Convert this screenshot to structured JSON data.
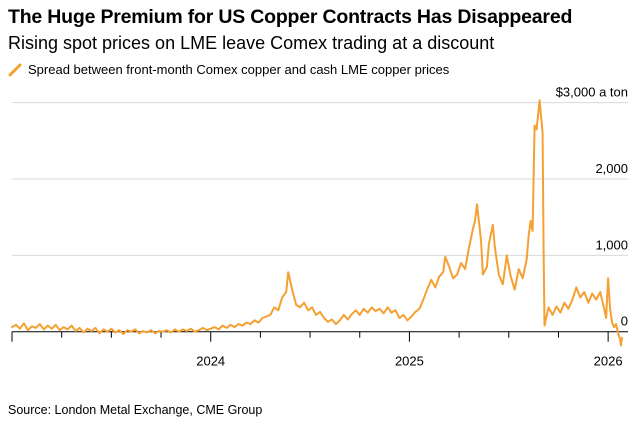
{
  "header": {
    "title": "The Huge Premium for US Copper Contracts Has Disappeared",
    "subtitle": "Rising spot prices on LME leave Comex trading at a discount"
  },
  "footer": {
    "source": "Source: London Metal Exchange, CME Group"
  },
  "colors": {
    "series": "#f5a033",
    "grid": "#d9d9d9",
    "axis": "#000000",
    "text": "#000000"
  },
  "chart_data": {
    "type": "line",
    "title": "The Huge Premium for US Copper Contracts Has Disappeared",
    "subtitle": "Rising spot prices on LME leave Comex trading at a discount",
    "xlabel": "",
    "ylabel": "$ a ton",
    "ylim": [
      -200,
      3100
    ],
    "xlim": [
      2023.0,
      2026.1
    ],
    "grid": true,
    "legend_position": "top-left",
    "y_ticks": [
      {
        "value": 3000,
        "label": "$3,000 a ton"
      },
      {
        "value": 2000,
        "label": "2,000"
      },
      {
        "value": 1000,
        "label": "1,000"
      },
      {
        "value": 0,
        "label": "0"
      }
    ],
    "x_ticks": [
      {
        "value": 2024,
        "label": "2024"
      },
      {
        "value": 2025,
        "label": "2025"
      },
      {
        "value": 2026,
        "label": "2026"
      }
    ],
    "series": [
      {
        "name": "Spread between front-month Comex copper and cash LME copper prices",
        "points": [
          [
            2023.0,
            60
          ],
          [
            2023.02,
            90
          ],
          [
            2023.04,
            40
          ],
          [
            2023.06,
            110
          ],
          [
            2023.08,
            20
          ],
          [
            2023.1,
            70
          ],
          [
            2023.12,
            50
          ],
          [
            2023.14,
            100
          ],
          [
            2023.16,
            30
          ],
          [
            2023.18,
            80
          ],
          [
            2023.2,
            40
          ],
          [
            2023.22,
            90
          ],
          [
            2023.24,
            20
          ],
          [
            2023.26,
            60
          ],
          [
            2023.28,
            30
          ],
          [
            2023.3,
            80
          ],
          [
            2023.32,
            10
          ],
          [
            2023.34,
            50
          ],
          [
            2023.36,
            -10
          ],
          [
            2023.38,
            40
          ],
          [
            2023.4,
            10
          ],
          [
            2023.42,
            50
          ],
          [
            2023.44,
            -20
          ],
          [
            2023.46,
            30
          ],
          [
            2023.48,
            0
          ],
          [
            2023.5,
            40
          ],
          [
            2023.52,
            -10
          ],
          [
            2023.54,
            20
          ],
          [
            2023.56,
            -30
          ],
          [
            2023.58,
            20
          ],
          [
            2023.6,
            0
          ],
          [
            2023.62,
            30
          ],
          [
            2023.64,
            -20
          ],
          [
            2023.66,
            10
          ],
          [
            2023.68,
            -10
          ],
          [
            2023.7,
            20
          ],
          [
            2023.72,
            -20
          ],
          [
            2023.74,
            10
          ],
          [
            2023.76,
            0
          ],
          [
            2023.78,
            20
          ],
          [
            2023.8,
            -10
          ],
          [
            2023.82,
            30
          ],
          [
            2023.84,
            0
          ],
          [
            2023.86,
            30
          ],
          [
            2023.88,
            10
          ],
          [
            2023.9,
            40
          ],
          [
            2023.92,
            0
          ],
          [
            2023.94,
            20
          ],
          [
            2023.96,
            50
          ],
          [
            2023.98,
            20
          ],
          [
            2024.0,
            40
          ],
          [
            2024.02,
            60
          ],
          [
            2024.04,
            30
          ],
          [
            2024.06,
            80
          ],
          [
            2024.08,
            50
          ],
          [
            2024.1,
            90
          ],
          [
            2024.12,
            60
          ],
          [
            2024.14,
            100
          ],
          [
            2024.16,
            80
          ],
          [
            2024.18,
            120
          ],
          [
            2024.2,
            100
          ],
          [
            2024.22,
            150
          ],
          [
            2024.24,
            120
          ],
          [
            2024.26,
            180
          ],
          [
            2024.28,
            200
          ],
          [
            2024.3,
            220
          ],
          [
            2024.32,
            320
          ],
          [
            2024.34,
            280
          ],
          [
            2024.36,
            450
          ],
          [
            2024.38,
            520
          ],
          [
            2024.39,
            780
          ],
          [
            2024.41,
            550
          ],
          [
            2024.43,
            350
          ],
          [
            2024.45,
            320
          ],
          [
            2024.47,
            380
          ],
          [
            2024.49,
            280
          ],
          [
            2024.51,
            320
          ],
          [
            2024.53,
            220
          ],
          [
            2024.55,
            260
          ],
          [
            2024.57,
            180
          ],
          [
            2024.59,
            130
          ],
          [
            2024.61,
            160
          ],
          [
            2024.63,
            100
          ],
          [
            2024.65,
            150
          ],
          [
            2024.67,
            220
          ],
          [
            2024.69,
            160
          ],
          [
            2024.71,
            230
          ],
          [
            2024.73,
            280
          ],
          [
            2024.75,
            220
          ],
          [
            2024.77,
            300
          ],
          [
            2024.79,
            250
          ],
          [
            2024.81,
            320
          ],
          [
            2024.83,
            270
          ],
          [
            2024.85,
            300
          ],
          [
            2024.87,
            240
          ],
          [
            2024.89,
            320
          ],
          [
            2024.91,
            250
          ],
          [
            2024.93,
            280
          ],
          [
            2024.95,
            180
          ],
          [
            2024.97,
            220
          ],
          [
            2024.99,
            150
          ],
          [
            2025.01,
            200
          ],
          [
            2025.03,
            260
          ],
          [
            2025.05,
            300
          ],
          [
            2025.07,
            420
          ],
          [
            2025.09,
            560
          ],
          [
            2025.11,
            680
          ],
          [
            2025.13,
            580
          ],
          [
            2025.15,
            720
          ],
          [
            2025.17,
            780
          ],
          [
            2025.18,
            980
          ],
          [
            2025.2,
            850
          ],
          [
            2025.22,
            700
          ],
          [
            2025.24,
            750
          ],
          [
            2025.26,
            900
          ],
          [
            2025.28,
            820
          ],
          [
            2025.3,
            1100
          ],
          [
            2025.32,
            1350
          ],
          [
            2025.33,
            1450
          ],
          [
            2025.34,
            1670
          ],
          [
            2025.36,
            1200
          ],
          [
            2025.37,
            750
          ],
          [
            2025.39,
            850
          ],
          [
            2025.4,
            1150
          ],
          [
            2025.42,
            1400
          ],
          [
            2025.43,
            1100
          ],
          [
            2025.45,
            750
          ],
          [
            2025.47,
            620
          ],
          [
            2025.49,
            1000
          ],
          [
            2025.51,
            720
          ],
          [
            2025.53,
            550
          ],
          [
            2025.55,
            820
          ],
          [
            2025.57,
            700
          ],
          [
            2025.59,
            950
          ],
          [
            2025.6,
            1250
          ],
          [
            2025.61,
            1450
          ],
          [
            2025.62,
            1320
          ],
          [
            2025.63,
            2700
          ],
          [
            2025.64,
            2650
          ],
          [
            2025.655,
            3030
          ],
          [
            2025.665,
            2750
          ],
          [
            2025.67,
            2600
          ],
          [
            2025.675,
            1200
          ],
          [
            2025.68,
            80
          ],
          [
            2025.7,
            320
          ],
          [
            2025.72,
            220
          ],
          [
            2025.74,
            330
          ],
          [
            2025.76,
            250
          ],
          [
            2025.78,
            380
          ],
          [
            2025.8,
            300
          ],
          [
            2025.82,
            420
          ],
          [
            2025.84,
            580
          ],
          [
            2025.86,
            450
          ],
          [
            2025.88,
            520
          ],
          [
            2025.9,
            380
          ],
          [
            2025.92,
            500
          ],
          [
            2025.94,
            420
          ],
          [
            2025.96,
            520
          ],
          [
            2025.98,
            300
          ],
          [
            2025.99,
            180
          ],
          [
            2026.0,
            700
          ],
          [
            2026.01,
            300
          ],
          [
            2026.02,
            120
          ],
          [
            2026.03,
            60
          ],
          [
            2026.04,
            100
          ],
          [
            2026.05,
            -20
          ],
          [
            2026.06,
            -100
          ],
          [
            2026.065,
            -180
          ],
          [
            2026.07,
            -80
          ]
        ]
      }
    ]
  }
}
